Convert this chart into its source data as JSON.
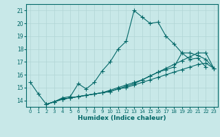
{
  "xlabel": "Humidex (Indice chaleur)",
  "ylabel": "",
  "background_color": "#c8e8e8",
  "line_color": "#006666",
  "grid_color": "#b0d4d4",
  "xlim": [
    -0.5,
    23.5
  ],
  "ylim": [
    13.5,
    21.5
  ],
  "yticks": [
    14,
    15,
    16,
    17,
    18,
    19,
    20,
    21
  ],
  "xticks": [
    0,
    1,
    2,
    3,
    4,
    5,
    6,
    7,
    8,
    9,
    10,
    11,
    12,
    13,
    14,
    15,
    16,
    17,
    18,
    19,
    20,
    21,
    22,
    23
  ],
  "line1_x": [
    0,
    1,
    2,
    3,
    4,
    5,
    6,
    7,
    8,
    9,
    10,
    11,
    12,
    13,
    14,
    15,
    16,
    17,
    18,
    19,
    20,
    21,
    22
  ],
  "line1_y": [
    15.4,
    14.5,
    13.7,
    13.9,
    14.2,
    14.3,
    15.3,
    14.9,
    15.4,
    16.3,
    17.0,
    18.0,
    18.6,
    21.0,
    20.5,
    20.0,
    20.1,
    19.0,
    18.4,
    17.7,
    17.2,
    17.3,
    16.6
  ],
  "line2_x": [
    2,
    3,
    4,
    5,
    6,
    7,
    8,
    9,
    10,
    11,
    12,
    13,
    14,
    15,
    16,
    17,
    18,
    19,
    20,
    21,
    22,
    23
  ],
  "line2_y": [
    13.7,
    13.9,
    14.1,
    14.2,
    14.3,
    14.4,
    14.5,
    14.6,
    14.8,
    15.0,
    15.2,
    15.4,
    15.6,
    15.9,
    16.2,
    16.4,
    16.6,
    17.7,
    17.7,
    17.5,
    17.2,
    16.5
  ],
  "line3_x": [
    2,
    3,
    4,
    5,
    6,
    7,
    8,
    9,
    10,
    11,
    12,
    13,
    14,
    15,
    16,
    17,
    18,
    19,
    20,
    21,
    22,
    23
  ],
  "line3_y": [
    13.7,
    13.9,
    14.1,
    14.2,
    14.3,
    14.4,
    14.5,
    14.6,
    14.7,
    14.9,
    15.1,
    15.3,
    15.6,
    15.9,
    16.2,
    16.5,
    16.8,
    17.1,
    17.4,
    17.7,
    17.7,
    16.5
  ],
  "line4_x": [
    2,
    3,
    4,
    5,
    6,
    7,
    8,
    9,
    10,
    11,
    12,
    13,
    14,
    15,
    16,
    17,
    18,
    19,
    20,
    21,
    22,
    23
  ],
  "line4_y": [
    13.7,
    13.9,
    14.1,
    14.2,
    14.3,
    14.4,
    14.5,
    14.6,
    14.7,
    14.9,
    15.0,
    15.2,
    15.4,
    15.6,
    15.8,
    16.0,
    16.2,
    16.4,
    16.6,
    16.8,
    16.9,
    16.5
  ]
}
